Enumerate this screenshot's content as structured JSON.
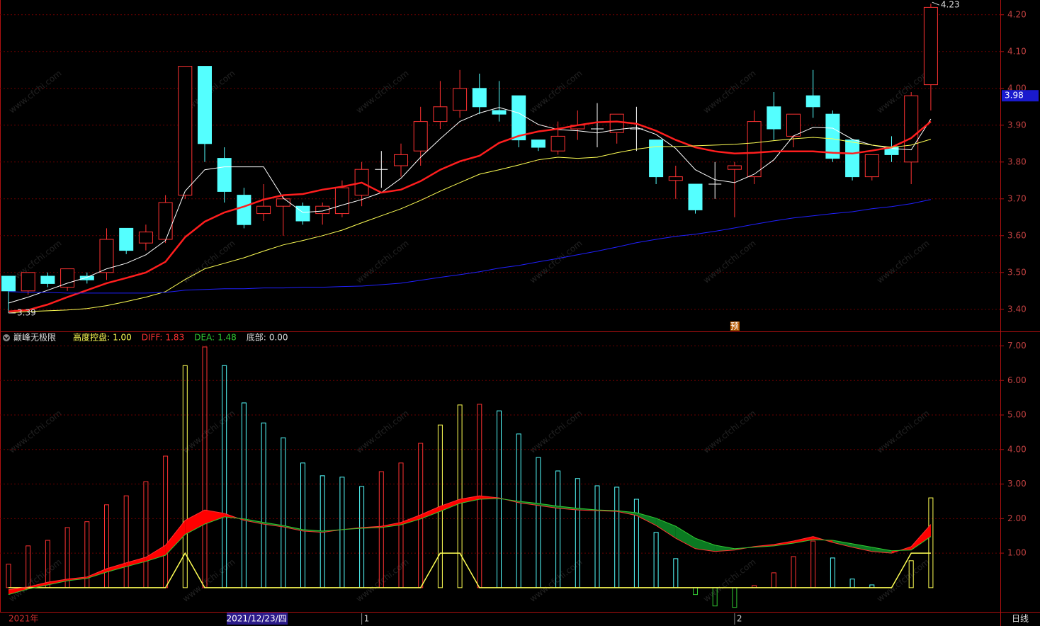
{
  "watermark": "www.cfchi.com",
  "period": "日线",
  "cursor_date": {
    "index": 13,
    "label": "2021/12/23/四"
  },
  "chart_data": [
    {
      "type": "candlestick",
      "categories": [
        "2021年",
        null,
        null,
        null,
        null,
        null,
        null,
        null,
        null,
        null,
        null,
        null,
        null,
        null,
        null,
        null,
        null,
        null,
        "1",
        null,
        null,
        null,
        null,
        null,
        null,
        null,
        null,
        null,
        null,
        null,
        null,
        null,
        null,
        null,
        null,
        null,
        null,
        "2",
        null,
        null,
        null,
        null,
        null,
        null,
        null,
        null,
        null,
        null
      ],
      "open": [
        3.49,
        3.45,
        3.49,
        3.46,
        3.49,
        3.5,
        3.62,
        3.58,
        3.59,
        3.71,
        4.06,
        3.81,
        3.71,
        3.66,
        3.68,
        3.68,
        3.66,
        3.66,
        3.71,
        3.78,
        3.79,
        3.83,
        3.91,
        3.94,
        4.0,
        3.94,
        3.98,
        3.86,
        3.83,
        3.89,
        3.89,
        3.88,
        3.89,
        3.86,
        3.75,
        3.74,
        3.74,
        3.78,
        3.76,
        3.95,
        3.87,
        3.98,
        3.93,
        3.86,
        3.76,
        3.84,
        3.8,
        4.01
      ],
      "high": [
        3.49,
        3.5,
        3.5,
        3.51,
        3.5,
        3.62,
        3.62,
        3.63,
        3.71,
        4.06,
        4.06,
        3.84,
        3.73,
        3.74,
        3.71,
        3.69,
        3.69,
        3.75,
        3.8,
        3.83,
        3.85,
        3.95,
        4.02,
        4.05,
        4.04,
        4.02,
        3.98,
        3.86,
        3.91,
        3.94,
        3.96,
        3.93,
        3.95,
        3.86,
        3.79,
        3.74,
        3.8,
        3.8,
        3.94,
        3.99,
        3.93,
        4.05,
        3.94,
        3.86,
        3.82,
        3.87,
        3.99,
        4.23
      ],
      "low": [
        3.39,
        3.44,
        3.46,
        3.45,
        3.47,
        3.48,
        3.55,
        3.56,
        3.58,
        3.7,
        3.8,
        3.69,
        3.62,
        3.64,
        3.6,
        3.63,
        3.63,
        3.65,
        3.68,
        3.73,
        3.76,
        3.79,
        3.89,
        3.92,
        3.93,
        3.91,
        3.84,
        3.83,
        3.82,
        3.86,
        3.84,
        3.85,
        3.83,
        3.74,
        3.7,
        3.66,
        3.7,
        3.65,
        3.74,
        3.86,
        3.84,
        3.92,
        3.8,
        3.75,
        3.75,
        3.8,
        3.74,
        3.94
      ],
      "close": [
        3.45,
        3.5,
        3.47,
        3.51,
        3.48,
        3.59,
        3.56,
        3.61,
        3.69,
        4.06,
        3.85,
        3.72,
        3.63,
        3.68,
        3.7,
        3.64,
        3.68,
        3.73,
        3.78,
        3.78,
        3.82,
        3.91,
        3.95,
        4.0,
        3.95,
        3.93,
        3.86,
        3.84,
        3.87,
        3.9,
        3.89,
        3.93,
        3.89,
        3.76,
        3.76,
        3.67,
        3.74,
        3.79,
        3.91,
        3.89,
        3.93,
        3.95,
        3.81,
        3.76,
        3.82,
        3.82,
        3.98,
        4.22
      ],
      "up_color": "#ff3232",
      "down_color": "#54ffff",
      "flat_color": "#ffffff",
      "lines": [
        {
          "color": "#ffffff",
          "width": 1,
          "values": [
            3.417,
            3.433,
            3.452,
            3.471,
            3.487,
            3.51,
            3.525,
            3.548,
            3.587,
            3.721,
            3.779,
            3.787,
            3.787,
            3.787,
            3.702,
            3.663,
            3.667,
            3.683,
            3.698,
            3.717,
            3.756,
            3.813,
            3.863,
            3.91,
            3.933,
            3.948,
            3.933,
            3.902,
            3.888,
            3.885,
            3.879,
            3.888,
            3.894,
            3.875,
            3.837,
            3.779,
            3.752,
            3.744,
            3.767,
            3.806,
            3.871,
            3.894,
            3.892,
            3.862,
            3.846,
            3.837,
            3.833,
            3.917
          ]
        },
        {
          "color": "#ff1e1e",
          "width": 2.5,
          "values": [
            3.394,
            3.398,
            3.413,
            3.433,
            3.452,
            3.471,
            3.485,
            3.5,
            3.529,
            3.596,
            3.638,
            3.663,
            3.679,
            3.698,
            3.71,
            3.713,
            3.725,
            3.733,
            3.744,
            3.717,
            3.725,
            3.748,
            3.779,
            3.802,
            3.817,
            3.852,
            3.871,
            3.883,
            3.89,
            3.9,
            3.908,
            3.91,
            3.904,
            3.885,
            3.86,
            3.84,
            3.829,
            3.823,
            3.825,
            3.829,
            3.829,
            3.829,
            3.825,
            3.823,
            3.831,
            3.84,
            3.865,
            3.91
          ]
        },
        {
          "color": "#ffff54",
          "width": 1,
          "values": [
            3.39,
            3.394,
            3.396,
            3.398,
            3.402,
            3.41,
            3.421,
            3.433,
            3.448,
            3.481,
            3.51,
            3.525,
            3.54,
            3.558,
            3.575,
            3.587,
            3.6,
            3.615,
            3.635,
            3.654,
            3.673,
            3.696,
            3.721,
            3.744,
            3.767,
            3.779,
            3.792,
            3.806,
            3.813,
            3.81,
            3.813,
            3.825,
            3.835,
            3.842,
            3.842,
            3.844,
            3.846,
            3.848,
            3.852,
            3.858,
            3.863,
            3.867,
            3.863,
            3.854,
            3.846,
            3.84,
            3.846,
            3.862
          ]
        },
        {
          "color": "#2020ff",
          "width": 1,
          "values": [
            3.448,
            3.446,
            3.446,
            3.444,
            3.444,
            3.444,
            3.444,
            3.444,
            3.446,
            3.452,
            3.454,
            3.456,
            3.456,
            3.458,
            3.458,
            3.46,
            3.46,
            3.462,
            3.463,
            3.467,
            3.471,
            3.479,
            3.487,
            3.494,
            3.502,
            3.512,
            3.519,
            3.529,
            3.538,
            3.548,
            3.558,
            3.569,
            3.581,
            3.59,
            3.598,
            3.604,
            3.612,
            3.621,
            3.631,
            3.64,
            3.648,
            3.654,
            3.66,
            3.665,
            3.673,
            3.679,
            3.687,
            3.698
          ]
        }
      ],
      "ylim": [
        3.34,
        4.24
      ],
      "yticks": [
        {
          "value": 3.4,
          "label": "3.40"
        },
        {
          "value": 3.5,
          "label": "3.50"
        },
        {
          "value": 3.6,
          "label": "3.60"
        },
        {
          "value": 3.7,
          "label": "3.70"
        },
        {
          "value": 3.8,
          "label": "3.80"
        },
        {
          "value": 3.9,
          "label": "3.90"
        },
        {
          "value": 4.0,
          "label": "4.00"
        },
        {
          "value": 4.1,
          "label": "4.10"
        },
        {
          "value": 4.2,
          "label": "4.20"
        }
      ],
      "grid": true,
      "max_label": {
        "index": 47,
        "value": 4.23,
        "label": "4.23"
      },
      "min_label": {
        "index": 0,
        "value": 3.39,
        "label": "3.39"
      },
      "cursor_price": {
        "value": 3.98,
        "label": "3.98"
      },
      "flag": {
        "index": 37,
        "label": "预"
      }
    },
    {
      "type": "bar",
      "title": "巅峰无极限",
      "bars": {
        "values": [
          0.68,
          1.21,
          1.37,
          1.74,
          1.91,
          2.4,
          2.66,
          3.07,
          3.81,
          6.43,
          6.97,
          6.43,
          5.35,
          4.77,
          4.34,
          3.61,
          3.24,
          3.2,
          2.93,
          3.36,
          3.61,
          4.18,
          4.71,
          5.29,
          5.31,
          5.12,
          4.45,
          3.77,
          3.38,
          3.16,
          2.95,
          2.91,
          2.56,
          1.6,
          0.84,
          -0.2,
          -0.53,
          -0.57,
          0.06,
          0.43,
          0.9,
          1.35,
          0.86,
          0.25,
          0.08,
          0,
          0.78,
          2.6
        ],
        "colors": [
          "#ff3232",
          "#ff3232",
          "#ff3232",
          "#ff3232",
          "#ff3232",
          "#ff3232",
          "#ff3232",
          "#ff3232",
          "#ff3232",
          "#ffff54",
          "#ff3232",
          "#54ffff",
          "#54ffff",
          "#54ffff",
          "#54ffff",
          "#54ffff",
          "#54ffff",
          "#54ffff",
          "#54ffff",
          "#ff3232",
          "#ff3232",
          "#ff3232",
          "#ffff54",
          "#ffff54",
          "#ff3232",
          "#54ffff",
          "#54ffff",
          "#54ffff",
          "#54ffff",
          "#54ffff",
          "#54ffff",
          "#54ffff",
          "#54ffff",
          "#54ffff",
          "#54ffff",
          "#32c832",
          "#32c832",
          "#32c832",
          "#ff3232",
          "#ff3232",
          "#ff3232",
          "#ff3232",
          "#54ffff",
          "#54ffff",
          "#54ffff",
          "#54ffff",
          "#ffff54",
          "#ffff54"
        ]
      },
      "series": [
        {
          "name": "高度控盘:",
          "legend_value": "1.00",
          "color": "#ffff54",
          "values": [
            0,
            0,
            0,
            0,
            0,
            0,
            0,
            0,
            0,
            1,
            0,
            0,
            0,
            0,
            0,
            0,
            0,
            0,
            0,
            0,
            0,
            0,
            1,
            1,
            0,
            0,
            0,
            0,
            0,
            0,
            0,
            0,
            0,
            0,
            0,
            0,
            0,
            0,
            0,
            0,
            0,
            0,
            0,
            0,
            0,
            0,
            1,
            1
          ]
        },
        {
          "name": "DIFF:",
          "legend_value": "1.83",
          "color": "#ff3232",
          "values": [
            -0.06,
            0.02,
            0.16,
            0.25,
            0.31,
            0.55,
            0.72,
            0.88,
            1.23,
            1.95,
            2.25,
            2.15,
            1.95,
            1.84,
            1.76,
            1.64,
            1.6,
            1.68,
            1.74,
            1.78,
            1.89,
            2.11,
            2.36,
            2.56,
            2.66,
            2.6,
            2.46,
            2.38,
            2.3,
            2.25,
            2.23,
            2.21,
            2.09,
            1.8,
            1.43,
            1.13,
            1.05,
            1.09,
            1.19,
            1.25,
            1.35,
            1.48,
            1.31,
            1.17,
            1.05,
            1.0,
            1.19,
            1.83
          ]
        },
        {
          "name": "DEA:",
          "legend_value": "1.48",
          "color": "#32c832",
          "values": [
            -0.2,
            -0.04,
            0.08,
            0.2,
            0.27,
            0.45,
            0.61,
            0.76,
            0.94,
            1.54,
            1.84,
            2.05,
            1.99,
            1.89,
            1.8,
            1.68,
            1.64,
            1.68,
            1.72,
            1.74,
            1.82,
            1.99,
            2.21,
            2.44,
            2.56,
            2.58,
            2.5,
            2.44,
            2.36,
            2.3,
            2.25,
            2.23,
            2.17,
            2.01,
            1.78,
            1.43,
            1.23,
            1.13,
            1.17,
            1.21,
            1.29,
            1.39,
            1.37,
            1.27,
            1.17,
            1.07,
            1.09,
            1.48
          ]
        },
        {
          "name": "底部:",
          "legend_value": "0.00",
          "color": "#dddddd"
        }
      ],
      "fill_between": {
        "up": "#ff0000",
        "down": "#0b7a22"
      },
      "ylim": [
        -0.7,
        7.42
      ],
      "yticks": [
        {
          "value": 1,
          "label": "1.00"
        },
        {
          "value": 2,
          "label": "2.00"
        },
        {
          "value": 3,
          "label": "3.00"
        },
        {
          "value": 4,
          "label": "4.00"
        },
        {
          "value": 5,
          "label": "5.00"
        },
        {
          "value": 6,
          "label": "6.00"
        },
        {
          "value": 7,
          "label": "7.00"
        }
      ],
      "grid": true
    }
  ]
}
